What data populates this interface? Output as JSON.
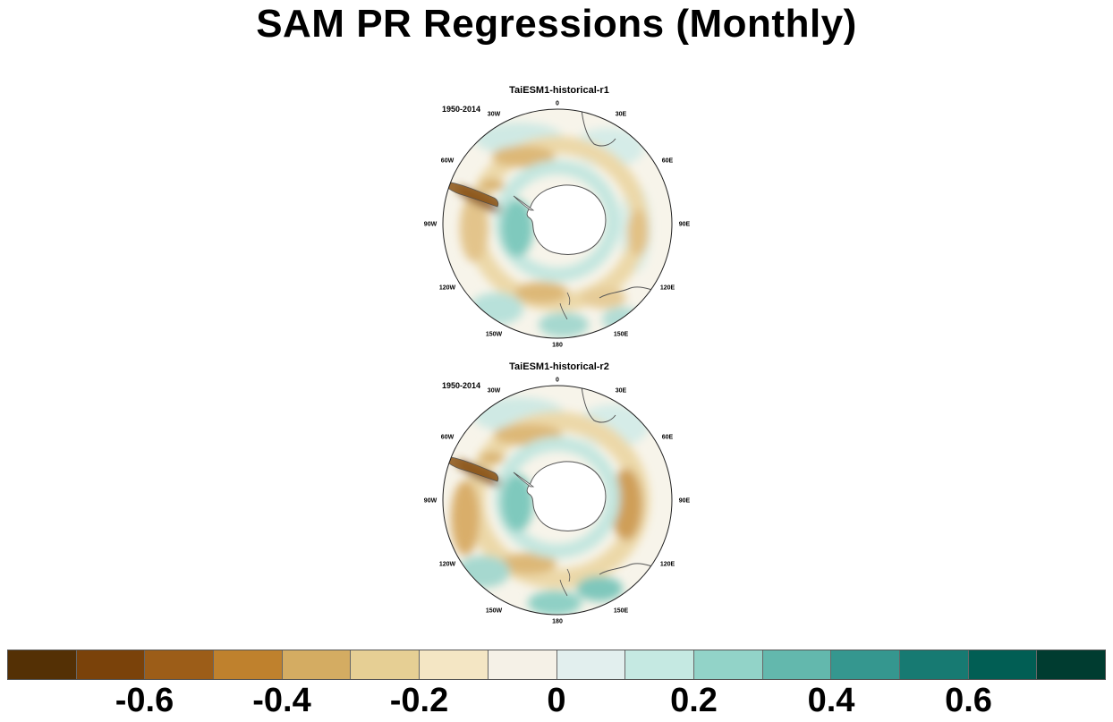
{
  "title": "SAM PR Regressions (Monthly)",
  "panels": [
    {
      "title": "TaiESM1-historical-r1",
      "period": "1950-2014",
      "lon_labels": [
        "0",
        "30E",
        "60E",
        "90E",
        "120E",
        "150E",
        "180",
        "150W",
        "120W",
        "90W",
        "60W",
        "30W"
      ]
    },
    {
      "title": "TaiESM1-historical-r2",
      "period": "1950-2014",
      "lon_labels": [
        "0",
        "30E",
        "60E",
        "90E",
        "120E",
        "150E",
        "180",
        "150W",
        "120W",
        "90W",
        "60W",
        "30W"
      ]
    }
  ],
  "colorbar": {
    "colors": [
      "#543005",
      "#7a420a",
      "#9c5d18",
      "#bf812d",
      "#d4ac62",
      "#e6cf94",
      "#f4e6c4",
      "#f5f1e7",
      "#e2efee",
      "#c5e9e2",
      "#92d3c8",
      "#63b8ad",
      "#35978f",
      "#177a72",
      "#015e54",
      "#003c30"
    ],
    "labels": [
      "-0.6",
      "-0.4",
      "-0.2",
      "0",
      "0.2",
      "0.4",
      "0.6"
    ]
  },
  "chart_data": {
    "type": "heatmap",
    "title": "SAM PR Regressions (Monthly)",
    "projection": "south polar stereographic",
    "panels": [
      "TaiESM1-historical-r1",
      "TaiESM1-historical-r2"
    ],
    "period": "1950-2014",
    "color_levels": [
      -0.7,
      -0.6,
      -0.5,
      -0.4,
      -0.3,
      -0.2,
      -0.1,
      0,
      0.1,
      0.2,
      0.3,
      0.4,
      0.5,
      0.6,
      0.7
    ],
    "colorbar_ticks": [
      -0.6,
      -0.4,
      -0.2,
      0,
      0.2,
      0.4,
      0.6
    ]
  }
}
